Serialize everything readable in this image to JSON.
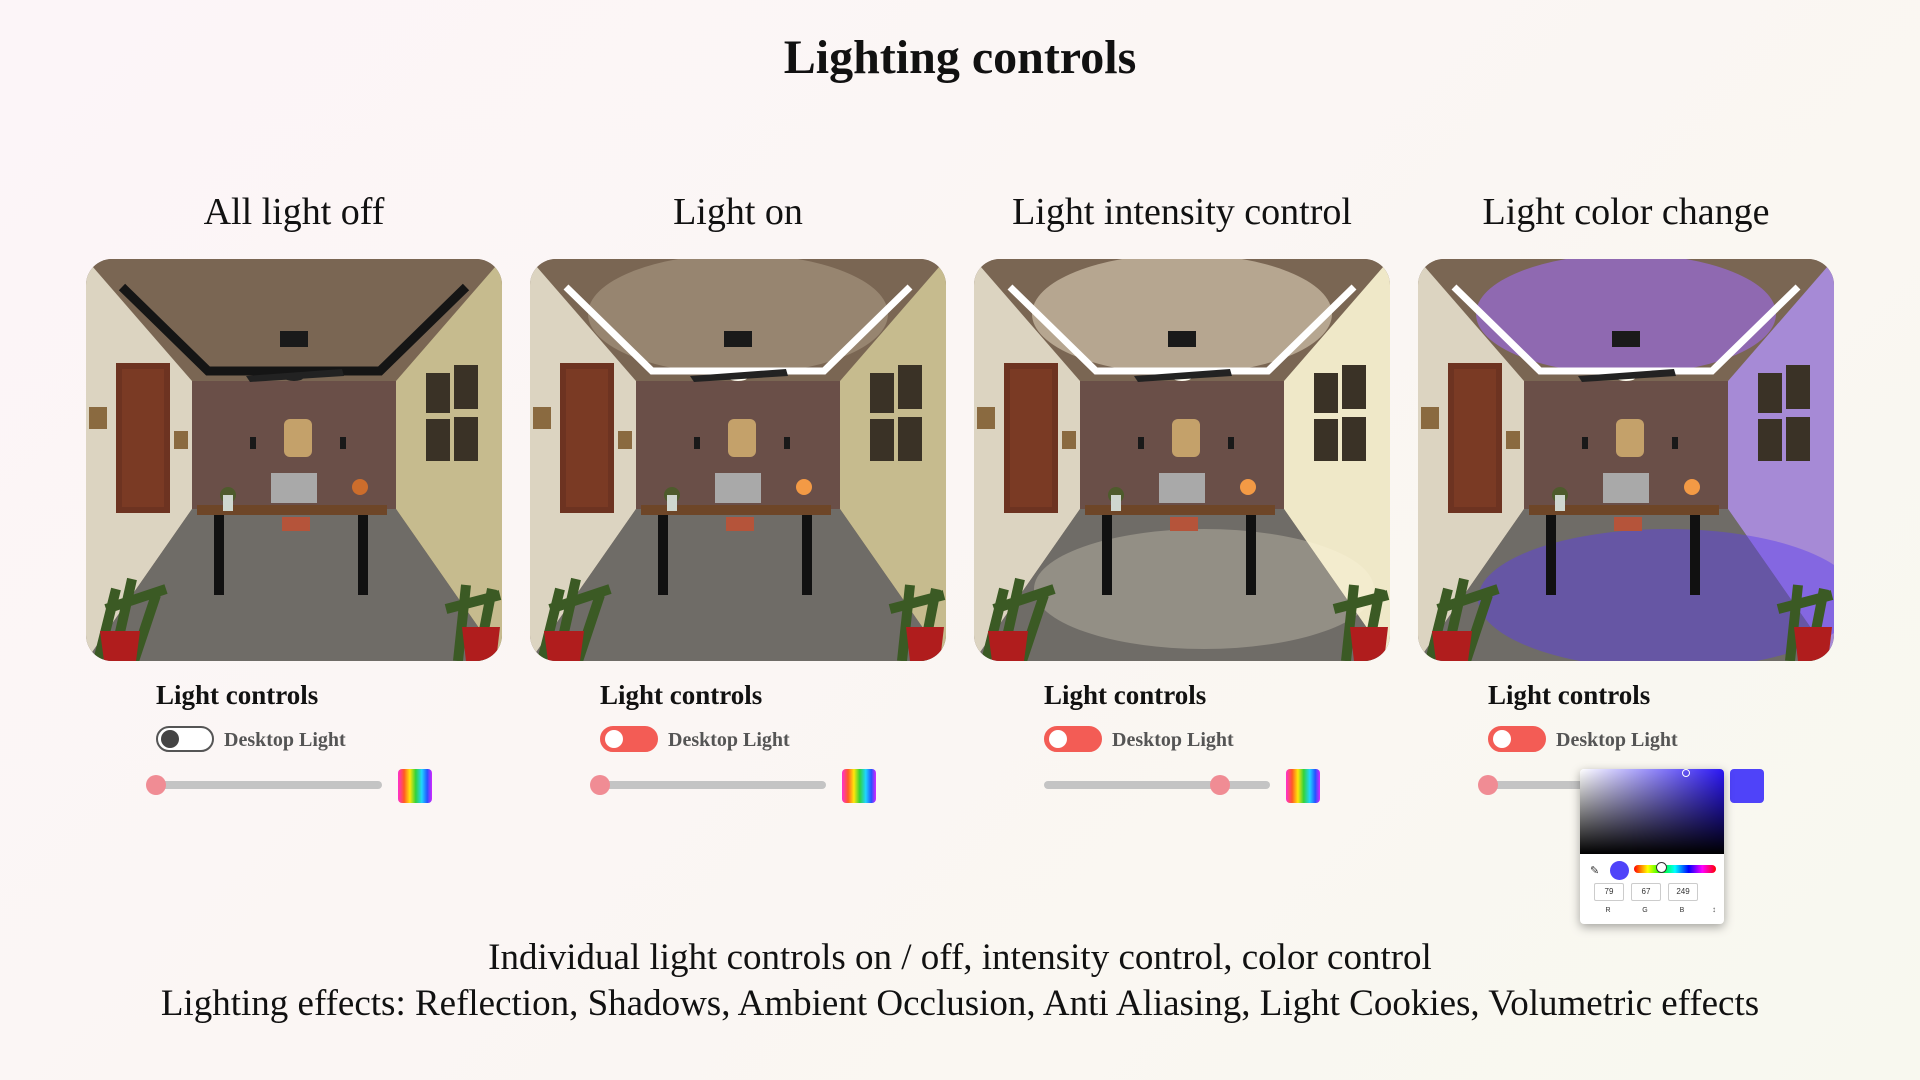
{
  "page": {
    "title": "Lighting controls"
  },
  "panels": [
    {
      "title": "All light off",
      "state": "off",
      "controls_title": "Light controls",
      "toggle_label": "Desktop Light",
      "toggle_on": false,
      "intensity": 0.0,
      "swatch": "rainbow"
    },
    {
      "title": "Light on",
      "state": "on",
      "controls_title": "Light controls",
      "toggle_label": "Desktop Light",
      "toggle_on": true,
      "intensity": 0.0,
      "swatch": "rainbow"
    },
    {
      "title": "Light intensity control",
      "state": "intensity",
      "controls_title": "Light controls",
      "toggle_label": "Desktop Light",
      "toggle_on": true,
      "intensity": 0.78,
      "swatch": "rainbow"
    },
    {
      "title": "Light color change",
      "state": "color",
      "controls_title": "Light controls",
      "toggle_label": "Desktop Light",
      "toggle_on": true,
      "intensity": 0.0,
      "swatch": "#4f43f9"
    }
  ],
  "color_picker": {
    "color": "#4f43f9",
    "rgb": {
      "r": "79",
      "g": "67",
      "b": "249"
    },
    "labels": {
      "r": "R",
      "g": "G",
      "b": "B"
    },
    "mode_arrows": "↕"
  },
  "colors": {
    "accent": "#f35c55",
    "toggle_off": "#444444",
    "slider_thumb": "#f08c94",
    "slider_track": "#c4c4c4",
    "light_warm": "#fff4dc",
    "light_purple": "#a16bff"
  },
  "footer": {
    "line1": "Individual light controls on / off, intensity control, color control",
    "line2": "Lighting effects: Reflection, Shadows, Ambient Occlusion, Anti Aliasing, Light Cookies, Volumetric effects"
  }
}
